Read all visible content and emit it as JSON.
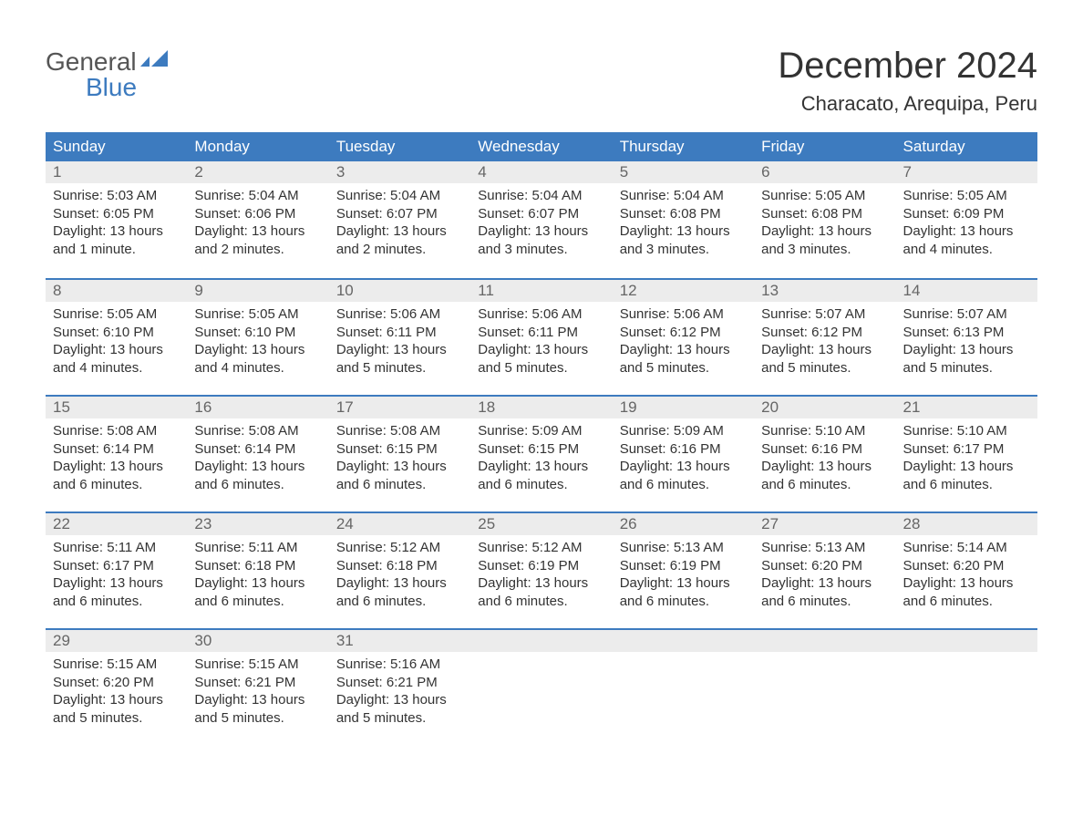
{
  "logo": {
    "top": "General",
    "bottom": "Blue"
  },
  "title": "December 2024",
  "location": "Characato, Arequipa, Peru",
  "colors": {
    "header_bg": "#3d7bbf",
    "header_text": "#ffffff",
    "daynum_bg": "#ececec",
    "daynum_text": "#666666",
    "body_text": "#333333",
    "week_border": "#3d7bbf",
    "logo_blue": "#3d7bbf",
    "page_bg": "#ffffff"
  },
  "fonts": {
    "title_size_pt": 30,
    "location_size_pt": 16,
    "weekday_size_pt": 13,
    "daynum_size_pt": 13,
    "body_size_pt": 11,
    "family": "Arial"
  },
  "weekdays": [
    "Sunday",
    "Monday",
    "Tuesday",
    "Wednesday",
    "Thursday",
    "Friday",
    "Saturday"
  ],
  "weeks": [
    [
      {
        "n": "1",
        "sr": "Sunrise: 5:03 AM",
        "ss": "Sunset: 6:05 PM",
        "d1": "Daylight: 13 hours",
        "d2": "and 1 minute."
      },
      {
        "n": "2",
        "sr": "Sunrise: 5:04 AM",
        "ss": "Sunset: 6:06 PM",
        "d1": "Daylight: 13 hours",
        "d2": "and 2 minutes."
      },
      {
        "n": "3",
        "sr": "Sunrise: 5:04 AM",
        "ss": "Sunset: 6:07 PM",
        "d1": "Daylight: 13 hours",
        "d2": "and 2 minutes."
      },
      {
        "n": "4",
        "sr": "Sunrise: 5:04 AM",
        "ss": "Sunset: 6:07 PM",
        "d1": "Daylight: 13 hours",
        "d2": "and 3 minutes."
      },
      {
        "n": "5",
        "sr": "Sunrise: 5:04 AM",
        "ss": "Sunset: 6:08 PM",
        "d1": "Daylight: 13 hours",
        "d2": "and 3 minutes."
      },
      {
        "n": "6",
        "sr": "Sunrise: 5:05 AM",
        "ss": "Sunset: 6:08 PM",
        "d1": "Daylight: 13 hours",
        "d2": "and 3 minutes."
      },
      {
        "n": "7",
        "sr": "Sunrise: 5:05 AM",
        "ss": "Sunset: 6:09 PM",
        "d1": "Daylight: 13 hours",
        "d2": "and 4 minutes."
      }
    ],
    [
      {
        "n": "8",
        "sr": "Sunrise: 5:05 AM",
        "ss": "Sunset: 6:10 PM",
        "d1": "Daylight: 13 hours",
        "d2": "and 4 minutes."
      },
      {
        "n": "9",
        "sr": "Sunrise: 5:05 AM",
        "ss": "Sunset: 6:10 PM",
        "d1": "Daylight: 13 hours",
        "d2": "and 4 minutes."
      },
      {
        "n": "10",
        "sr": "Sunrise: 5:06 AM",
        "ss": "Sunset: 6:11 PM",
        "d1": "Daylight: 13 hours",
        "d2": "and 5 minutes."
      },
      {
        "n": "11",
        "sr": "Sunrise: 5:06 AM",
        "ss": "Sunset: 6:11 PM",
        "d1": "Daylight: 13 hours",
        "d2": "and 5 minutes."
      },
      {
        "n": "12",
        "sr": "Sunrise: 5:06 AM",
        "ss": "Sunset: 6:12 PM",
        "d1": "Daylight: 13 hours",
        "d2": "and 5 minutes."
      },
      {
        "n": "13",
        "sr": "Sunrise: 5:07 AM",
        "ss": "Sunset: 6:12 PM",
        "d1": "Daylight: 13 hours",
        "d2": "and 5 minutes."
      },
      {
        "n": "14",
        "sr": "Sunrise: 5:07 AM",
        "ss": "Sunset: 6:13 PM",
        "d1": "Daylight: 13 hours",
        "d2": "and 5 minutes."
      }
    ],
    [
      {
        "n": "15",
        "sr": "Sunrise: 5:08 AM",
        "ss": "Sunset: 6:14 PM",
        "d1": "Daylight: 13 hours",
        "d2": "and 6 minutes."
      },
      {
        "n": "16",
        "sr": "Sunrise: 5:08 AM",
        "ss": "Sunset: 6:14 PM",
        "d1": "Daylight: 13 hours",
        "d2": "and 6 minutes."
      },
      {
        "n": "17",
        "sr": "Sunrise: 5:08 AM",
        "ss": "Sunset: 6:15 PM",
        "d1": "Daylight: 13 hours",
        "d2": "and 6 minutes."
      },
      {
        "n": "18",
        "sr": "Sunrise: 5:09 AM",
        "ss": "Sunset: 6:15 PM",
        "d1": "Daylight: 13 hours",
        "d2": "and 6 minutes."
      },
      {
        "n": "19",
        "sr": "Sunrise: 5:09 AM",
        "ss": "Sunset: 6:16 PM",
        "d1": "Daylight: 13 hours",
        "d2": "and 6 minutes."
      },
      {
        "n": "20",
        "sr": "Sunrise: 5:10 AM",
        "ss": "Sunset: 6:16 PM",
        "d1": "Daylight: 13 hours",
        "d2": "and 6 minutes."
      },
      {
        "n": "21",
        "sr": "Sunrise: 5:10 AM",
        "ss": "Sunset: 6:17 PM",
        "d1": "Daylight: 13 hours",
        "d2": "and 6 minutes."
      }
    ],
    [
      {
        "n": "22",
        "sr": "Sunrise: 5:11 AM",
        "ss": "Sunset: 6:17 PM",
        "d1": "Daylight: 13 hours",
        "d2": "and 6 minutes."
      },
      {
        "n": "23",
        "sr": "Sunrise: 5:11 AM",
        "ss": "Sunset: 6:18 PM",
        "d1": "Daylight: 13 hours",
        "d2": "and 6 minutes."
      },
      {
        "n": "24",
        "sr": "Sunrise: 5:12 AM",
        "ss": "Sunset: 6:18 PM",
        "d1": "Daylight: 13 hours",
        "d2": "and 6 minutes."
      },
      {
        "n": "25",
        "sr": "Sunrise: 5:12 AM",
        "ss": "Sunset: 6:19 PM",
        "d1": "Daylight: 13 hours",
        "d2": "and 6 minutes."
      },
      {
        "n": "26",
        "sr": "Sunrise: 5:13 AM",
        "ss": "Sunset: 6:19 PM",
        "d1": "Daylight: 13 hours",
        "d2": "and 6 minutes."
      },
      {
        "n": "27",
        "sr": "Sunrise: 5:13 AM",
        "ss": "Sunset: 6:20 PM",
        "d1": "Daylight: 13 hours",
        "d2": "and 6 minutes."
      },
      {
        "n": "28",
        "sr": "Sunrise: 5:14 AM",
        "ss": "Sunset: 6:20 PM",
        "d1": "Daylight: 13 hours",
        "d2": "and 6 minutes."
      }
    ],
    [
      {
        "n": "29",
        "sr": "Sunrise: 5:15 AM",
        "ss": "Sunset: 6:20 PM",
        "d1": "Daylight: 13 hours",
        "d2": "and 5 minutes."
      },
      {
        "n": "30",
        "sr": "Sunrise: 5:15 AM",
        "ss": "Sunset: 6:21 PM",
        "d1": "Daylight: 13 hours",
        "d2": "and 5 minutes."
      },
      {
        "n": "31",
        "sr": "Sunrise: 5:16 AM",
        "ss": "Sunset: 6:21 PM",
        "d1": "Daylight: 13 hours",
        "d2": "and 5 minutes."
      },
      {
        "n": "",
        "sr": "",
        "ss": "",
        "d1": "",
        "d2": "",
        "empty": true
      },
      {
        "n": "",
        "sr": "",
        "ss": "",
        "d1": "",
        "d2": "",
        "empty": true
      },
      {
        "n": "",
        "sr": "",
        "ss": "",
        "d1": "",
        "d2": "",
        "empty": true
      },
      {
        "n": "",
        "sr": "",
        "ss": "",
        "d1": "",
        "d2": "",
        "empty": true
      }
    ]
  ]
}
